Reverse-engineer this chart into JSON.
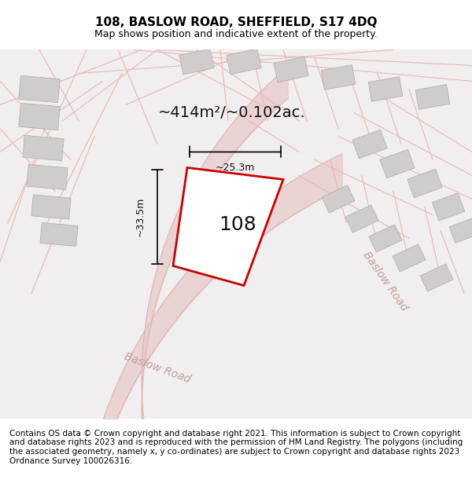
{
  "title": "108, BASLOW ROAD, SHEFFIELD, S17 4DQ",
  "subtitle": "Map shows position and indicative extent of the property.",
  "area_label": "~414m²/~0.102ac.",
  "house_number": "108",
  "dim_width": "~25.3m",
  "dim_height": "~33.5m",
  "road_label": "Baslow Road",
  "footer": "Contains OS data © Crown copyright and database right 2021. This information is subject to Crown copyright and database rights 2023 and is reproduced with the permission of HM Land Registry. The polygons (including the associated geometry, namely x, y co-ordinates) are subject to Crown copyright and database rights 2023 Ordnance Survey 100026316.",
  "bg_color": "#f5f5f5",
  "map_bg": "#f0eeee",
  "plot_color": "#cc0000",
  "plot_fill": "#ffffff",
  "road_color": "#e8c8c8",
  "building_color": "#d0cccc",
  "title_fontsize": 11,
  "subtitle_fontsize": 9,
  "footer_fontsize": 7.5
}
